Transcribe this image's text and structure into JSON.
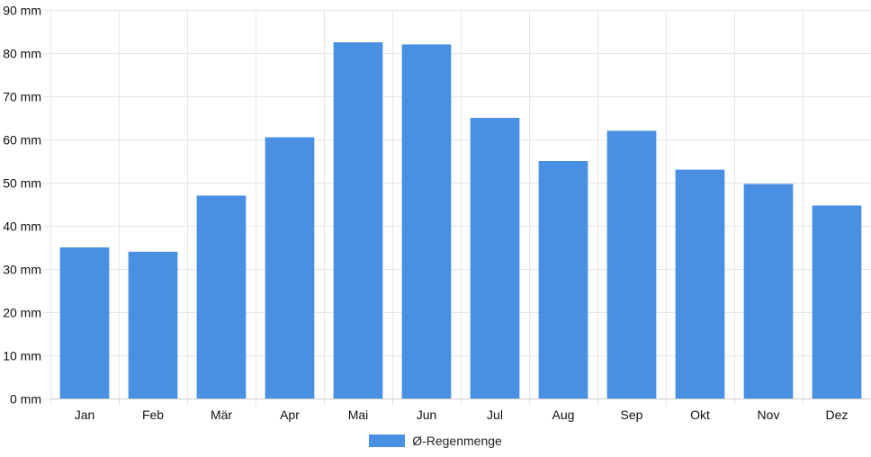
{
  "chart_data": {
    "type": "bar",
    "categories": [
      "Jan",
      "Feb",
      "Mär",
      "Apr",
      "Mai",
      "Jun",
      "Jul",
      "Aug",
      "Sep",
      "Okt",
      "Nov",
      "Dez"
    ],
    "series": [
      {
        "name": "Ø-Regenmenge",
        "values": [
          35,
          34,
          47,
          60.5,
          82.5,
          82,
          65,
          55,
          62,
          53,
          49.7,
          44.7
        ],
        "color": "#4a90e2"
      }
    ],
    "ylim": [
      0,
      90
    ],
    "y_tick_step": 10,
    "y_unit": "mm",
    "y_tick_labels": [
      "0 mm",
      "10 mm",
      "20 mm",
      "30 mm",
      "40 mm",
      "50 mm",
      "60 mm",
      "70 mm",
      "80 mm",
      "90 mm"
    ],
    "grid": true,
    "grid_color": "#e6e6e6",
    "legend_position": "bottom-center"
  }
}
